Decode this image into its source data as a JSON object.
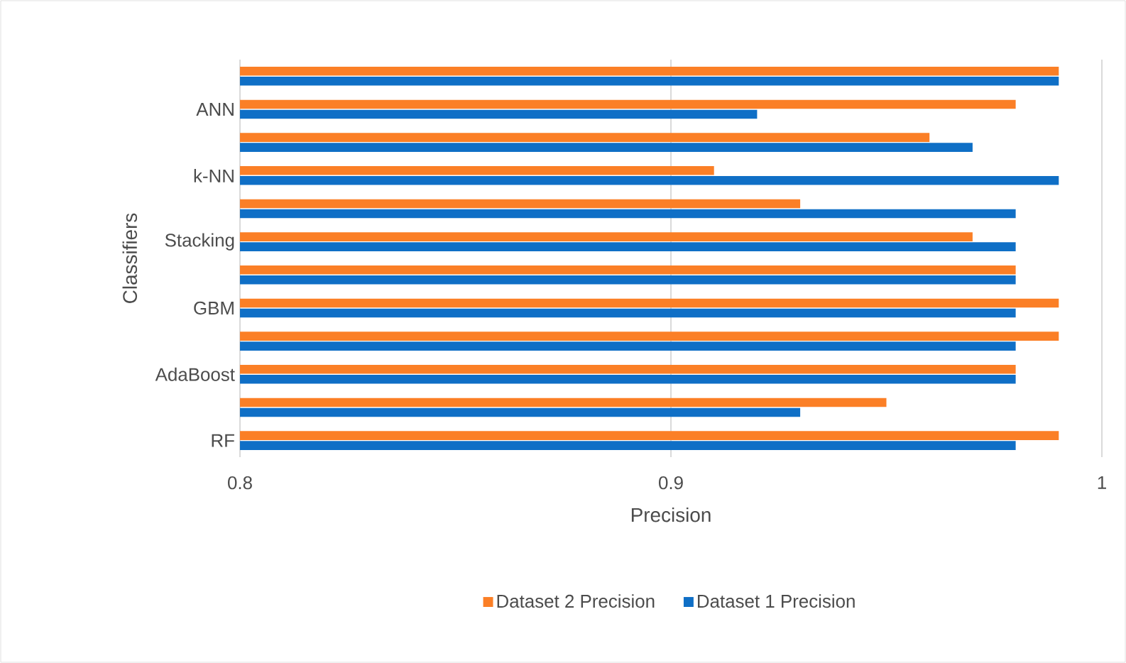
{
  "chart_data": {
    "type": "bar",
    "orientation": "horizontal",
    "xlabel": "Precision",
    "ylabel": "Classifiers",
    "categories": [
      null,
      "ANN",
      null,
      "k-NN",
      null,
      "Stacking",
      null,
      "GBM",
      null,
      "AdaBoost",
      null,
      "RF"
    ],
    "series": [
      {
        "name": "Dataset 2 Precision",
        "color": "#fb7f26",
        "values": [
          0.99,
          0.98,
          0.96,
          0.91,
          0.93,
          0.97,
          0.98,
          0.99,
          0.99,
          0.98,
          0.95,
          0.99
        ]
      },
      {
        "name": "Dataset 1 Precision",
        "color": "#0f6fc6",
        "values": [
          0.99,
          0.92,
          0.97,
          0.99,
          0.98,
          0.98,
          0.98,
          0.98,
          0.98,
          0.98,
          0.93,
          0.98
        ]
      }
    ],
    "xlim": [
      0.8,
      1.0
    ],
    "xticks": [
      0.8,
      0.9,
      {
        "value": 1.0,
        "label": "1"
      }
    ],
    "grid": "x",
    "legend": "bottom"
  }
}
